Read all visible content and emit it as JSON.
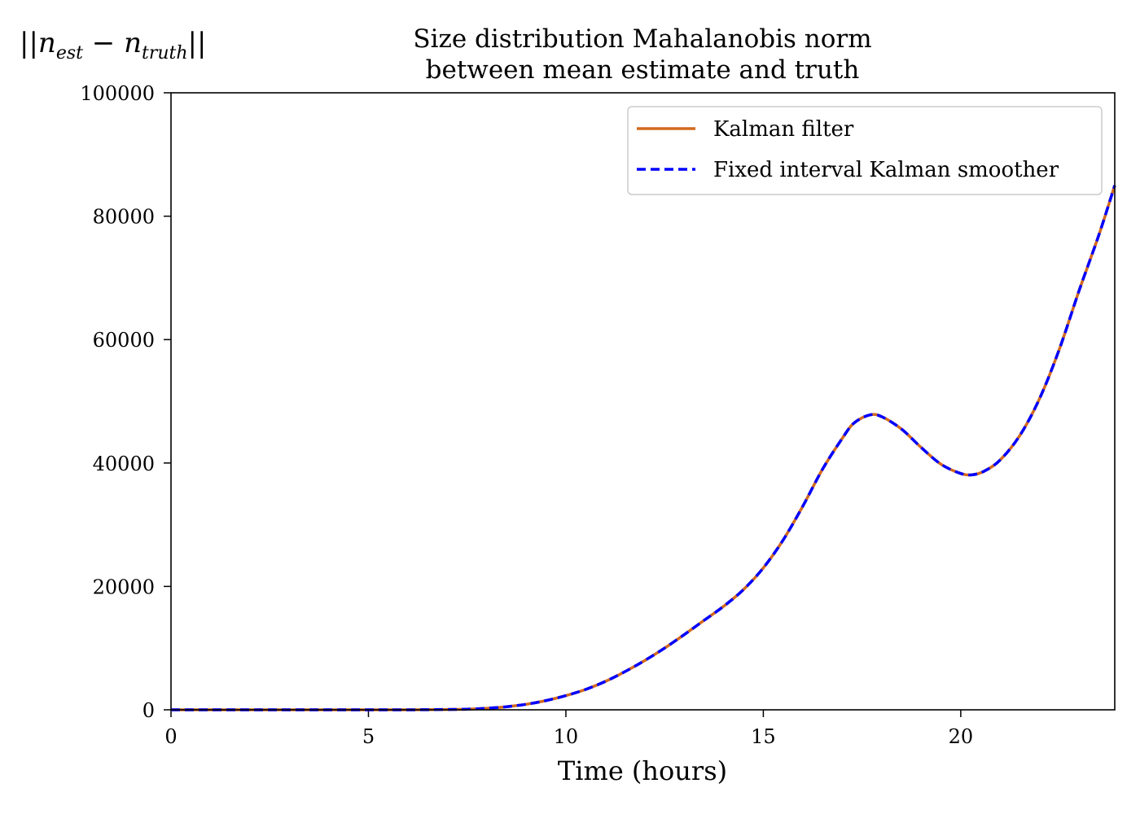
{
  "chart_data": {
    "type": "line",
    "title_line1": "Size distribution Mahalanobis norm",
    "title_line2": "between mean estimate and truth",
    "ylabel": "||n_est − n_truth||",
    "ylabel_parts": {
      "open": "||n",
      "sub1": "est",
      "minus": " − n",
      "sub2": "truth",
      "close": "||"
    },
    "xlabel": "Time (hours)",
    "xlim": [
      0,
      23.9
    ],
    "ylim": [
      0,
      100000
    ],
    "xticks": [
      0,
      5,
      10,
      15,
      20
    ],
    "yticks": [
      0,
      20000,
      40000,
      60000,
      80000,
      100000
    ],
    "grid": false,
    "legend_position": "top-right",
    "x": [
      0,
      1,
      2,
      3,
      4,
      5,
      6,
      7,
      7.5,
      8,
      8.5,
      9,
      9.5,
      10,
      10.5,
      11,
      11.5,
      12,
      12.5,
      13,
      13.5,
      14,
      14.5,
      15,
      15.5,
      16,
      16.5,
      17,
      17.3,
      17.7,
      18,
      18.5,
      19,
      19.5,
      20,
      20.3,
      20.6,
      21,
      21.5,
      22,
      22.5,
      23,
      23.5,
      23.9
    ],
    "series": [
      {
        "name": "Kalman filter",
        "color": "#d2691e",
        "style": "solid",
        "values": [
          0,
          0,
          0,
          0,
          0,
          0,
          0,
          50,
          100,
          250,
          500,
          900,
          1500,
          2300,
          3300,
          4600,
          6200,
          8000,
          10000,
          12200,
          14500,
          16800,
          19500,
          23000,
          27500,
          33000,
          39000,
          44000,
          46500,
          47800,
          47500,
          45500,
          42500,
          39800,
          38300,
          38100,
          38700,
          40500,
          44500,
          50500,
          58500,
          68000,
          77000,
          85000
        ]
      },
      {
        "name": "Fixed interval Kalman smoother",
        "color": "#0000ff",
        "style": "dashed",
        "values": [
          0,
          0,
          0,
          0,
          0,
          0,
          0,
          50,
          100,
          250,
          500,
          900,
          1500,
          2300,
          3300,
          4600,
          6200,
          8000,
          10000,
          12200,
          14500,
          16800,
          19500,
          23000,
          27500,
          33000,
          39000,
          44000,
          46500,
          47800,
          47500,
          45500,
          42500,
          39800,
          38300,
          38100,
          38700,
          40500,
          44500,
          50500,
          58500,
          68000,
          77000,
          85000
        ]
      }
    ]
  }
}
